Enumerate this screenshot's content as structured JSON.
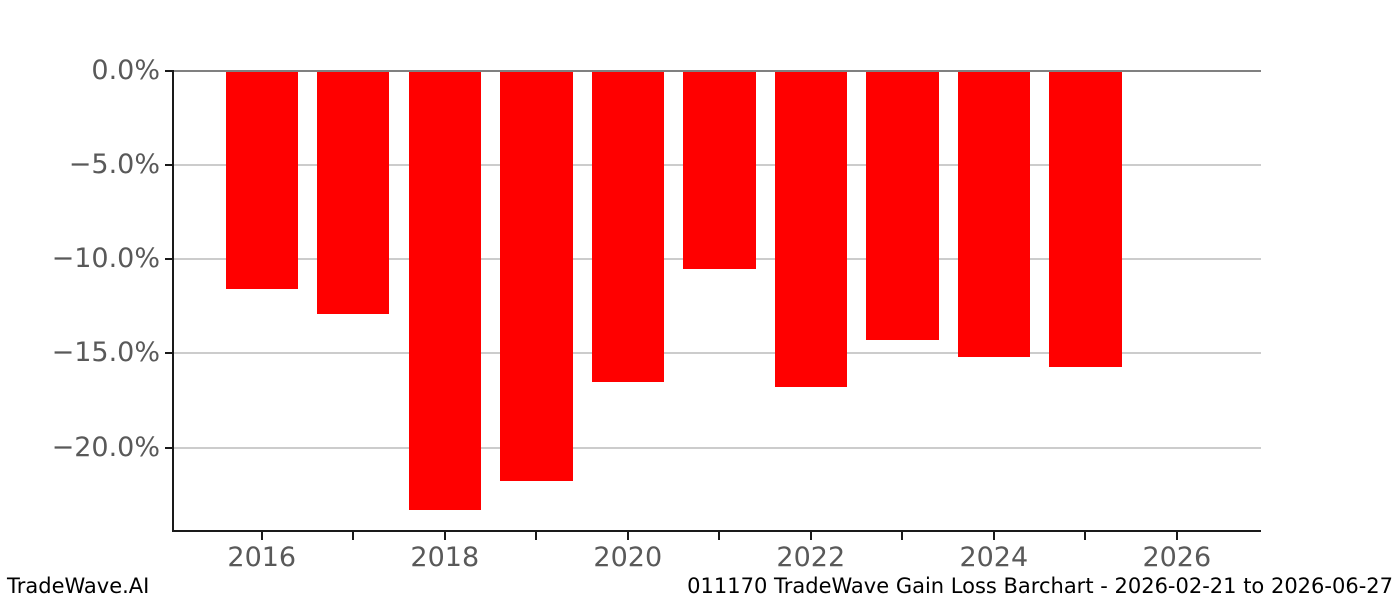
{
  "chart_data": {
    "type": "bar",
    "title": "011170 TradeWave Gain Loss Barchart - 2026-02-21 to 2026-06-27",
    "categories": [
      2016,
      2017,
      2018,
      2019,
      2020,
      2021,
      2022,
      2023,
      2024,
      2025
    ],
    "values": [
      -11.6,
      -12.9,
      -23.3,
      -21.8,
      -16.5,
      -10.5,
      -16.8,
      -14.3,
      -15.2,
      -15.7
    ],
    "unit": "%",
    "xlabel": "",
    "ylabel": "",
    "xlim": [
      2015.03,
      2026.92
    ],
    "ylim": [
      -24.43,
      0
    ],
    "x_ticks": [
      2016,
      2017,
      2018,
      2019,
      2020,
      2021,
      2022,
      2023,
      2024,
      2025,
      2026
    ],
    "x_tick_labels": [
      "2016",
      "2018",
      "2020",
      "2022",
      "2024",
      "2026"
    ],
    "x_labeled_years": [
      2016,
      2018,
      2020,
      2022,
      2024,
      2026
    ],
    "y_ticks": [
      {
        "value": 0,
        "label": "0.0%"
      },
      {
        "value": -5,
        "label": "−5.0%"
      },
      {
        "value": -10,
        "label": "−10.0%"
      },
      {
        "value": -15,
        "label": "−15.0%"
      },
      {
        "value": -20,
        "label": "−20.0%"
      }
    ],
    "grid": true,
    "legend": null,
    "colors": {
      "bar": "#ff0000",
      "gridline": "#cccccc",
      "zero_line": "#808080",
      "tick_label": "#595959",
      "spine": "#1a1a1a"
    }
  },
  "footer": {
    "brand": "TradeWave.AI",
    "title": "011170 TradeWave Gain Loss Barchart - 2026-02-21 to 2026-06-27"
  }
}
